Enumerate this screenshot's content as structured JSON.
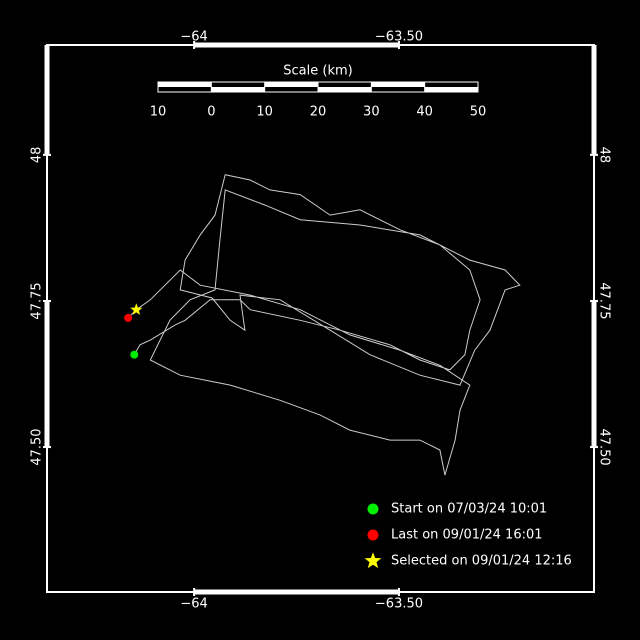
{
  "chart_data": {
    "type": "track",
    "xlim": [
      -64.359,
      -63.024
    ],
    "ylim": [
      47.252,
      48.188
    ],
    "xticks": [
      {
        "value": -64,
        "label": "−64"
      },
      {
        "value": -63.5,
        "label": "−63.50"
      }
    ],
    "yticks": [
      48,
      {
        "value": 47.75,
        "label": "47.75"
      },
      {
        "value": 47.5,
        "label": "47.50"
      }
    ],
    "track": {
      "color": "#cccccc",
      "lon": [
        -64.146,
        -64.132,
        -64.107,
        -64.046,
        -64.022,
        -63.961,
        -63.888,
        -63.863,
        -63.741,
        -63.644,
        -63.522,
        -63.449,
        -63.376,
        -63.339,
        -63.327,
        -63.302,
        -63.327,
        -63.4,
        -63.498,
        -63.595,
        -63.668,
        -63.741,
        -63.815,
        -63.863,
        -63.924,
        -63.949,
        -63.985,
        -64.022,
        -64.034,
        -63.956,
        -63.912,
        -63.876,
        -63.888,
        -63.79,
        -63.668,
        -63.571,
        -63.449,
        -63.351,
        -63.315,
        -63.278,
        -63.241,
        -63.205,
        -63.241,
        -63.327,
        -63.449,
        -63.595,
        -63.741,
        -63.827,
        -63.924,
        -63.937,
        -63.949,
        -64.01,
        -64.059,
        -64.107,
        -64.034,
        -63.912,
        -63.79,
        -63.693,
        -63.62,
        -63.522,
        -63.449,
        -63.4,
        -63.388,
        -63.363,
        -63.351,
        -63.327,
        -63.4,
        -63.498,
        -63.62,
        -63.741,
        -63.863,
        -63.985,
        -64.034,
        -64.107,
        -64.141,
        -64.161
      ],
      "lat": [
        47.658,
        47.675,
        47.683,
        47.709,
        47.717,
        47.752,
        47.752,
        47.735,
        47.717,
        47.7,
        47.675,
        47.649,
        47.632,
        47.658,
        47.7,
        47.752,
        47.803,
        47.846,
        47.872,
        47.906,
        47.897,
        47.932,
        47.94,
        47.957,
        47.966,
        47.897,
        47.863,
        47.82,
        47.769,
        47.755,
        47.717,
        47.7,
        47.76,
        47.752,
        47.7,
        47.658,
        47.623,
        47.606,
        47.666,
        47.7,
        47.769,
        47.777,
        47.803,
        47.82,
        47.863,
        47.88,
        47.889,
        47.914,
        47.94,
        47.854,
        47.769,
        47.752,
        47.717,
        47.649,
        47.623,
        47.606,
        47.58,
        47.555,
        47.529,
        47.512,
        47.512,
        47.495,
        47.452,
        47.512,
        47.563,
        47.606,
        47.64,
        47.666,
        47.692,
        47.735,
        47.76,
        47.777,
        47.803,
        47.752,
        47.735,
        47.721
      ]
    },
    "markers": [
      {
        "name": "Start on 07/03/24 10:01",
        "color": "#00ee00",
        "shape": "circle",
        "lon": -64.146,
        "lat": 47.658
      },
      {
        "name": "Last on 09/01/24 16:01",
        "color": "#ff0000",
        "shape": "circle",
        "lon": -64.161,
        "lat": 47.721
      },
      {
        "name": "Selected on 09/01/24 12:16",
        "color": "#ffff00",
        "shape": "star",
        "lon": -64.141,
        "lat": 47.735
      }
    ],
    "scale": {
      "title": "Scale (km)",
      "ticks": [
        {
          "value": -10,
          "label": "10"
        },
        0,
        10,
        20,
        30,
        40,
        50
      ]
    }
  }
}
